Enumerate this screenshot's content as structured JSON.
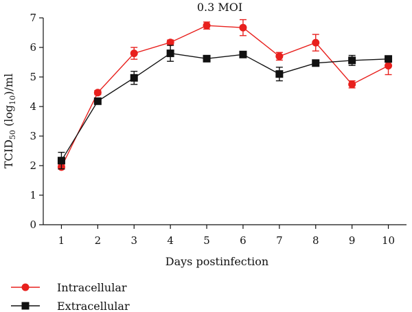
{
  "chart_data": {
    "type": "line",
    "title": "0.3 MOI",
    "xlabel": "Days postinfection",
    "ylabel": {
      "prefix": "TCID",
      "subscript": "50",
      "middle": " (log",
      "sub2": "10",
      "suffix": ")/ml"
    },
    "x": [
      1,
      2,
      3,
      4,
      5,
      6,
      7,
      8,
      9,
      10
    ],
    "xlim": [
      0.5,
      10.5
    ],
    "ylim": [
      0,
      7
    ],
    "yticks": [
      0,
      1,
      2,
      3,
      4,
      5,
      6,
      7
    ],
    "grid": false,
    "legend_position": "bottom-left",
    "series": [
      {
        "name": "Intracellular",
        "color": "#e8201d",
        "marker": "circle",
        "values": [
          1.95,
          4.47,
          5.8,
          6.17,
          6.74,
          6.67,
          5.7,
          6.16,
          4.75,
          5.38
        ],
        "errors": [
          0.07,
          0.07,
          0.2,
          0.08,
          0.12,
          0.27,
          0.13,
          0.28,
          0.12,
          0.3
        ]
      },
      {
        "name": "Extracellular",
        "color": "#111111",
        "marker": "square",
        "values": [
          2.17,
          4.18,
          4.97,
          5.8,
          5.62,
          5.76,
          5.1,
          5.47,
          5.56,
          5.61
        ],
        "errors": [
          0.28,
          0.07,
          0.22,
          0.27,
          0.06,
          0.05,
          0.23,
          0.06,
          0.17,
          0.1
        ]
      }
    ]
  }
}
